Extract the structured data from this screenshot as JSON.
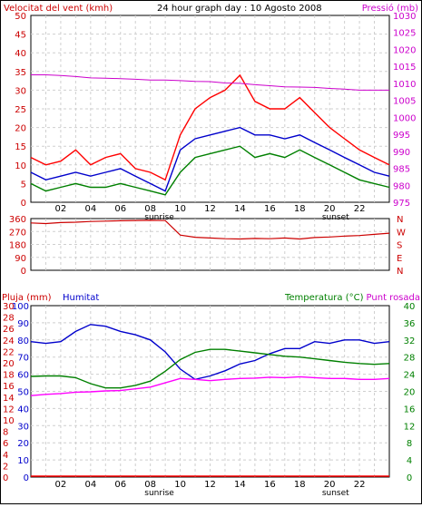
{
  "chart_data": [
    {
      "type": "line",
      "title": "24 hour graph day : 10 Agosto 2008",
      "left_axis_label": "Velocitat del vent (kmh)",
      "right_axis_label": "Pressió (mb)",
      "xticks": [
        "02",
        "04",
        "06",
        "08",
        "10",
        "12",
        "14",
        "16",
        "18",
        "20",
        "22"
      ],
      "x_markers": [
        "sunrise",
        "sunset"
      ],
      "x": [
        0,
        1,
        2,
        3,
        4,
        5,
        6,
        7,
        8,
        9,
        10,
        11,
        12,
        13,
        14,
        15,
        16,
        17,
        18,
        19,
        20,
        21,
        22,
        23,
        24
      ],
      "ylim_left": [
        0,
        50
      ],
      "yticks_left": [
        0,
        5,
        10,
        15,
        20,
        25,
        30,
        35,
        40,
        45,
        50
      ],
      "ylim_right": [
        975,
        1030
      ],
      "yticks_right": [
        975,
        980,
        985,
        990,
        995,
        1000,
        1005,
        1010,
        1015,
        1020,
        1025,
        1030
      ],
      "series": [
        {
          "color": "#ff0000",
          "axis": "left",
          "values": [
            12,
            10,
            11,
            14,
            10,
            12,
            13,
            9,
            8,
            6,
            18,
            25,
            28,
            30,
            34,
            27,
            25,
            25,
            28,
            24,
            20,
            17,
            14,
            12,
            10
          ]
        },
        {
          "color": "#0000cc",
          "axis": "left",
          "values": [
            8,
            6,
            7,
            8,
            7,
            8,
            9,
            7,
            5,
            3,
            14,
            17,
            18,
            19,
            20,
            18,
            18,
            17,
            18,
            16,
            14,
            12,
            10,
            8,
            7
          ]
        },
        {
          "color": "#008000",
          "axis": "left",
          "values": [
            5,
            3,
            4,
            5,
            4,
            4,
            5,
            4,
            3,
            2,
            8,
            12,
            13,
            14,
            15,
            12,
            13,
            12,
            14,
            12,
            10,
            8,
            6,
            5,
            4
          ]
        },
        {
          "color": "#cc00cc",
          "axis": "right",
          "values": [
            1012.5,
            1012.5,
            1012.3,
            1012.0,
            1011.6,
            1011.5,
            1011.4,
            1011.2,
            1011.0,
            1011.0,
            1010.8,
            1010.6,
            1010.5,
            1010.1,
            1010.0,
            1009.6,
            1009.3,
            1009.0,
            1008.9,
            1008.8,
            1008.5,
            1008.3,
            1008.0,
            1008.0,
            1008.0
          ]
        }
      ]
    },
    {
      "type": "line",
      "ylim": [
        0,
        360
      ],
      "yticks": [
        0,
        90,
        180,
        270,
        360
      ],
      "direction_labels": [
        "N",
        "W",
        "S",
        "E",
        "N"
      ],
      "x": [
        0,
        1,
        2,
        3,
        4,
        5,
        6,
        7,
        8,
        9,
        10,
        11,
        12,
        13,
        14,
        15,
        16,
        17,
        18,
        19,
        20,
        21,
        22,
        23,
        24
      ],
      "series": [
        {
          "color": "#cc0000",
          "values": [
            330,
            325,
            332,
            335,
            340,
            342,
            345,
            347,
            348,
            346,
            245,
            230,
            225,
            220,
            218,
            222,
            220,
            225,
            218,
            228,
            232,
            238,
            242,
            250,
            258
          ]
        }
      ]
    },
    {
      "type": "line",
      "label_left_1": "Pluja (mm)",
      "label_left_2": "Humitat",
      "label_right_1": "Temperatura (°C)",
      "label_right_2": "Punt rosada",
      "xticks": [
        "02",
        "04",
        "06",
        "08",
        "10",
        "12",
        "14",
        "16",
        "18",
        "20",
        "22"
      ],
      "x_markers": [
        "sunrise",
        "sunset"
      ],
      "yticks_rain": [
        "0",
        "2",
        "4",
        "6",
        "8",
        "10",
        "12",
        "14",
        "16",
        "18",
        "20",
        "22",
        "24",
        "26",
        "28",
        "30"
      ],
      "yticks_humidity": [
        "0",
        "10",
        "20",
        "30",
        "40",
        "50",
        "60",
        "70",
        "80",
        "90",
        "100"
      ],
      "yticks_temp": [
        "0",
        "4",
        "8",
        "12",
        "16",
        "20",
        "24",
        "28",
        "32",
        "36",
        "40"
      ],
      "ylim_humidity": [
        0,
        100
      ],
      "ylim_temp": [
        0,
        40
      ],
      "x": [
        0,
        1,
        2,
        3,
        4,
        5,
        6,
        7,
        8,
        9,
        10,
        11,
        12,
        13,
        14,
        15,
        16,
        17,
        18,
        19,
        20,
        21,
        22,
        23,
        24
      ],
      "series": [
        {
          "color": "#0000cc",
          "axis": "humidity",
          "values": [
            79,
            78,
            79,
            85,
            89,
            88,
            85,
            83,
            80,
            73,
            63,
            57,
            59,
            62,
            66,
            68,
            72,
            75,
            75,
            79,
            78,
            80,
            80,
            78,
            79
          ]
        },
        {
          "color": "#008000",
          "axis": "temp",
          "values": [
            23.5,
            23.6,
            23.6,
            23.2,
            21.8,
            20.8,
            20.8,
            21.4,
            22.4,
            24.7,
            27.4,
            29.1,
            29.8,
            29.8,
            29.4,
            29.0,
            28.6,
            28.2,
            28.0,
            27.6,
            27.2,
            26.8,
            26.5,
            26.3,
            26.5
          ]
        },
        {
          "color": "#ff00ff",
          "axis": "temp",
          "values": [
            19.0,
            19.3,
            19.5,
            19.8,
            19.9,
            20.1,
            20.2,
            20.6,
            21.0,
            22.0,
            23.0,
            22.8,
            22.5,
            22.8,
            23.0,
            23.1,
            23.3,
            23.2,
            23.4,
            23.2,
            23.0,
            23.0,
            22.8,
            22.8,
            23.0
          ]
        },
        {
          "color": "#ff0000",
          "axis": "rain",
          "values": [
            0,
            0,
            0,
            0,
            0,
            0,
            0,
            0,
            0,
            0,
            0,
            0,
            0,
            0,
            0,
            0,
            0,
            0,
            0,
            0,
            0,
            0,
            0,
            0,
            0
          ]
        }
      ]
    }
  ]
}
